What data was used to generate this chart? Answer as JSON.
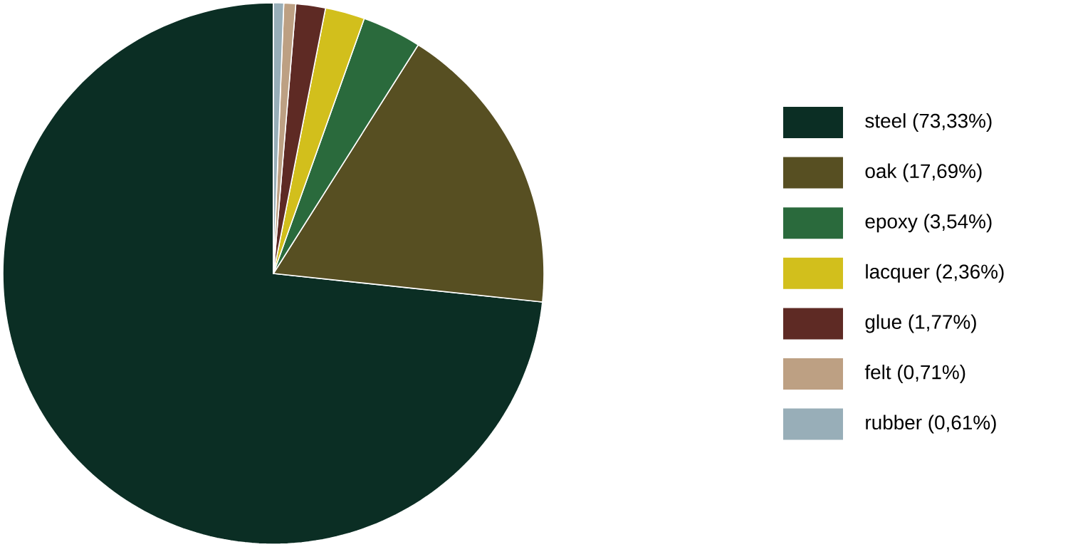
{
  "chart_data": {
    "type": "pie",
    "categories": [
      "steel (73,33%)",
      "oak (17,69%)",
      "epoxy (3,54%)",
      "lacquer (2,36%)",
      "glue (1,77%)",
      "felt (0,71%)",
      "rubber (0,61%)"
    ],
    "values": [
      73.33,
      17.69,
      3.54,
      2.36,
      1.77,
      0.71,
      0.61
    ],
    "colors": [
      "#0b2e24",
      "#574f22",
      "#2a6a3c",
      "#d2bf1c",
      "#5e2a24",
      "#bda083",
      "#98aeb8"
    ],
    "legend": "right"
  }
}
